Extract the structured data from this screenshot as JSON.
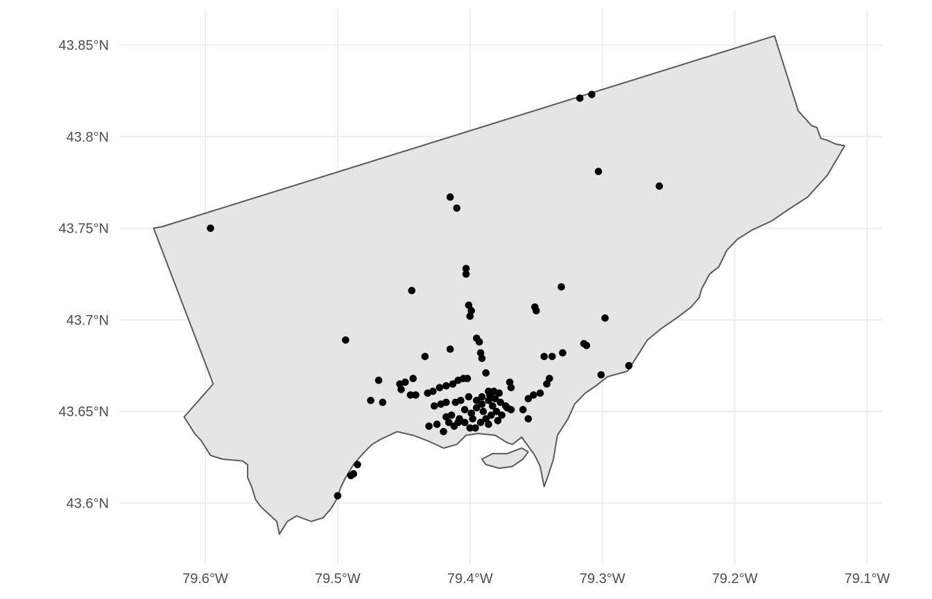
{
  "chart_data": {
    "type": "scatter",
    "title": "",
    "xlabel": "",
    "ylabel": "",
    "xlim": [
      -79.65,
      -79.085
    ],
    "ylim": [
      43.575,
      43.865
    ],
    "x_ticks": [
      {
        "value": -79.6,
        "label": "79.6°W"
      },
      {
        "value": -79.5,
        "label": "79.5°W"
      },
      {
        "value": -79.4,
        "label": "79.4°W"
      },
      {
        "value": -79.3,
        "label": "79.3°W"
      },
      {
        "value": -79.2,
        "label": "79.2°W"
      },
      {
        "value": -79.1,
        "label": "79.1°W"
      }
    ],
    "y_ticks": [
      {
        "value": 43.6,
        "label": "43.6°N"
      },
      {
        "value": 43.65,
        "label": "43.65°N"
      },
      {
        "value": 43.7,
        "label": "43.7°N"
      },
      {
        "value": 43.75,
        "label": "43.75°N"
      },
      {
        "value": 43.8,
        "label": "43.8°N"
      },
      {
        "value": 43.85,
        "label": "43.85°N"
      }
    ],
    "grid": true,
    "colors": {
      "fill": "#e5e5e5",
      "outline": "#595959",
      "points": "#000000",
      "grid": "#ebebeb"
    },
    "boundary": [
      [
        -79.639,
        43.75
      ],
      [
        -79.632,
        43.751
      ],
      [
        -79.17,
        43.855
      ],
      [
        -79.152,
        43.814
      ],
      [
        -79.147,
        43.81
      ],
      [
        -79.142,
        43.806
      ],
      [
        -79.138,
        43.805
      ],
      [
        -79.135,
        43.799
      ],
      [
        -79.13,
        43.798
      ],
      [
        -79.124,
        43.796
      ],
      [
        -79.117,
        43.795
      ],
      [
        -79.121,
        43.79
      ],
      [
        -79.13,
        43.779
      ],
      [
        -79.145,
        43.767
      ],
      [
        -79.16,
        43.76
      ],
      [
        -79.172,
        43.754
      ],
      [
        -79.187,
        43.749
      ],
      [
        -79.198,
        43.744
      ],
      [
        -79.206,
        43.738
      ],
      [
        -79.212,
        43.729
      ],
      [
        -79.219,
        43.725
      ],
      [
        -79.225,
        43.717
      ],
      [
        -79.227,
        43.712
      ],
      [
        -79.233,
        43.707
      ],
      [
        -79.244,
        43.701
      ],
      [
        -79.256,
        43.695
      ],
      [
        -79.266,
        43.689
      ],
      [
        -79.273,
        43.681
      ],
      [
        -79.281,
        43.672
      ],
      [
        -79.296,
        43.669
      ],
      [
        -79.305,
        43.664
      ],
      [
        -79.313,
        43.66
      ],
      [
        -79.321,
        43.654
      ],
      [
        -79.326,
        43.646
      ],
      [
        -79.334,
        43.637
      ],
      [
        -79.337,
        43.624
      ],
      [
        -79.341,
        43.615
      ],
      [
        -79.344,
        43.609
      ],
      [
        -79.347,
        43.62
      ],
      [
        -79.351,
        43.626
      ],
      [
        -79.361,
        43.636
      ],
      [
        -79.368,
        43.632
      ],
      [
        -79.372,
        43.633
      ],
      [
        -79.381,
        43.637
      ],
      [
        -79.394,
        43.638
      ],
      [
        -79.403,
        43.637
      ],
      [
        -79.41,
        43.632
      ],
      [
        -79.42,
        43.63
      ],
      [
        -79.432,
        43.634
      ],
      [
        -79.443,
        43.637
      ],
      [
        -79.455,
        43.639
      ],
      [
        -79.467,
        43.635
      ],
      [
        -79.474,
        43.632
      ],
      [
        -79.481,
        43.627
      ],
      [
        -79.488,
        43.621
      ],
      [
        -79.494,
        43.614
      ],
      [
        -79.498,
        43.608
      ],
      [
        -79.5,
        43.603
      ],
      [
        -79.505,
        43.597
      ],
      [
        -79.511,
        43.592
      ],
      [
        -79.52,
        43.59
      ],
      [
        -79.531,
        43.593
      ],
      [
        -79.538,
        43.59
      ],
      [
        -79.544,
        43.583
      ],
      [
        -79.546,
        43.59
      ],
      [
        -79.552,
        43.594
      ],
      [
        -79.558,
        43.598
      ],
      [
        -79.562,
        43.602
      ],
      [
        -79.565,
        43.609
      ],
      [
        -79.568,
        43.614
      ],
      [
        -79.568,
        43.621
      ],
      [
        -79.572,
        43.623
      ],
      [
        -79.587,
        43.624
      ],
      [
        -79.596,
        43.626
      ],
      [
        -79.603,
        43.634
      ],
      [
        -79.608,
        43.638
      ],
      [
        -79.616,
        43.647
      ],
      [
        -79.594,
        43.665
      ]
    ],
    "islands": [
      [
        [
          -79.388,
          43.621
        ],
        [
          -79.378,
          43.619
        ],
        [
          -79.368,
          43.62
        ],
        [
          -79.36,
          43.624
        ],
        [
          -79.356,
          43.628
        ],
        [
          -79.361,
          43.63
        ],
        [
          -79.372,
          43.627
        ],
        [
          -79.383,
          43.627
        ],
        [
          -79.391,
          43.624
        ]
      ]
    ],
    "points": [
      [
        -79.596,
        43.75
      ],
      [
        -79.317,
        43.821
      ],
      [
        -79.308,
        43.823
      ],
      [
        -79.303,
        43.781
      ],
      [
        -79.257,
        43.773
      ],
      [
        -79.415,
        43.767
      ],
      [
        -79.41,
        43.761
      ],
      [
        -79.403,
        43.728
      ],
      [
        -79.403,
        43.725
      ],
      [
        -79.444,
        43.716
      ],
      [
        -79.331,
        43.718
      ],
      [
        -79.401,
        43.708
      ],
      [
        -79.399,
        43.705
      ],
      [
        -79.4,
        43.702
      ],
      [
        -79.351,
        43.707
      ],
      [
        -79.35,
        43.705
      ],
      [
        -79.298,
        43.701
      ],
      [
        -79.494,
        43.689
      ],
      [
        -79.395,
        43.69
      ],
      [
        -79.393,
        43.688
      ],
      [
        -79.392,
        43.682
      ],
      [
        -79.391,
        43.679
      ],
      [
        -79.415,
        43.684
      ],
      [
        -79.434,
        43.68
      ],
      [
        -79.314,
        43.687
      ],
      [
        -79.312,
        43.686
      ],
      [
        -79.33,
        43.682
      ],
      [
        -79.338,
        43.68
      ],
      [
        -79.344,
        43.68
      ],
      [
        -79.28,
        43.675
      ],
      [
        -79.301,
        43.67
      ],
      [
        -79.388,
        43.671
      ],
      [
        -79.402,
        43.668
      ],
      [
        -79.405,
        43.668
      ],
      [
        -79.409,
        43.667
      ],
      [
        -79.413,
        43.665
      ],
      [
        -79.418,
        43.664
      ],
      [
        -79.423,
        43.663
      ],
      [
        -79.428,
        43.661
      ],
      [
        -79.432,
        43.66
      ],
      [
        -79.469,
        43.667
      ],
      [
        -79.453,
        43.665
      ],
      [
        -79.449,
        43.666
      ],
      [
        -79.443,
        43.668
      ],
      [
        -79.441,
        43.659
      ],
      [
        -79.445,
        43.659
      ],
      [
        -79.452,
        43.662
      ],
      [
        -79.475,
        43.656
      ],
      [
        -79.466,
        43.655
      ],
      [
        -79.34,
        43.668
      ],
      [
        -79.342,
        43.665
      ],
      [
        -79.352,
        43.659
      ],
      [
        -79.356,
        43.657
      ],
      [
        -79.347,
        43.66
      ],
      [
        -79.37,
        43.666
      ],
      [
        -79.369,
        43.663
      ],
      [
        -79.36,
        43.651
      ],
      [
        -79.356,
        43.646
      ],
      [
        -79.373,
        43.653
      ],
      [
        -79.378,
        43.66
      ],
      [
        -79.382,
        43.661
      ],
      [
        -79.386,
        43.661
      ],
      [
        -79.391,
        43.658
      ],
      [
        -79.395,
        43.656
      ],
      [
        -79.401,
        43.658
      ],
      [
        -79.407,
        43.656
      ],
      [
        -79.411,
        43.655
      ],
      [
        -79.418,
        43.655
      ],
      [
        -79.422,
        43.654
      ],
      [
        -79.427,
        43.653
      ],
      [
        -79.431,
        43.642
      ],
      [
        -79.425,
        43.643
      ],
      [
        -79.42,
        43.639
      ],
      [
        -79.416,
        43.644
      ],
      [
        -79.412,
        43.642
      ],
      [
        -79.408,
        43.646
      ],
      [
        -79.404,
        43.644
      ],
      [
        -79.4,
        43.641
      ],
      [
        -79.396,
        43.641
      ],
      [
        -79.392,
        43.644
      ],
      [
        -79.388,
        43.646
      ],
      [
        -79.384,
        43.648
      ],
      [
        -79.38,
        43.65
      ],
      [
        -79.376,
        43.648
      ],
      [
        -79.372,
        43.652
      ],
      [
        -79.399,
        43.649
      ],
      [
        -79.395,
        43.652
      ],
      [
        -79.391,
        43.654
      ],
      [
        -79.386,
        43.656
      ],
      [
        -79.381,
        43.657
      ],
      [
        -79.377,
        43.655
      ],
      [
        -79.39,
        43.65
      ],
      [
        -79.383,
        43.653
      ],
      [
        -79.385,
        43.659
      ],
      [
        -79.404,
        43.651
      ],
      [
        -79.414,
        43.648
      ],
      [
        -79.409,
        43.644
      ],
      [
        -79.418,
        43.647
      ],
      [
        -79.386,
        43.643
      ],
      [
        -79.379,
        43.645
      ],
      [
        -79.369,
        43.651
      ],
      [
        -79.398,
        43.646
      ],
      [
        -79.485,
        43.621
      ],
      [
        -79.488,
        43.616
      ],
      [
        -79.49,
        43.615
      ],
      [
        -79.5,
        43.604
      ]
    ]
  }
}
